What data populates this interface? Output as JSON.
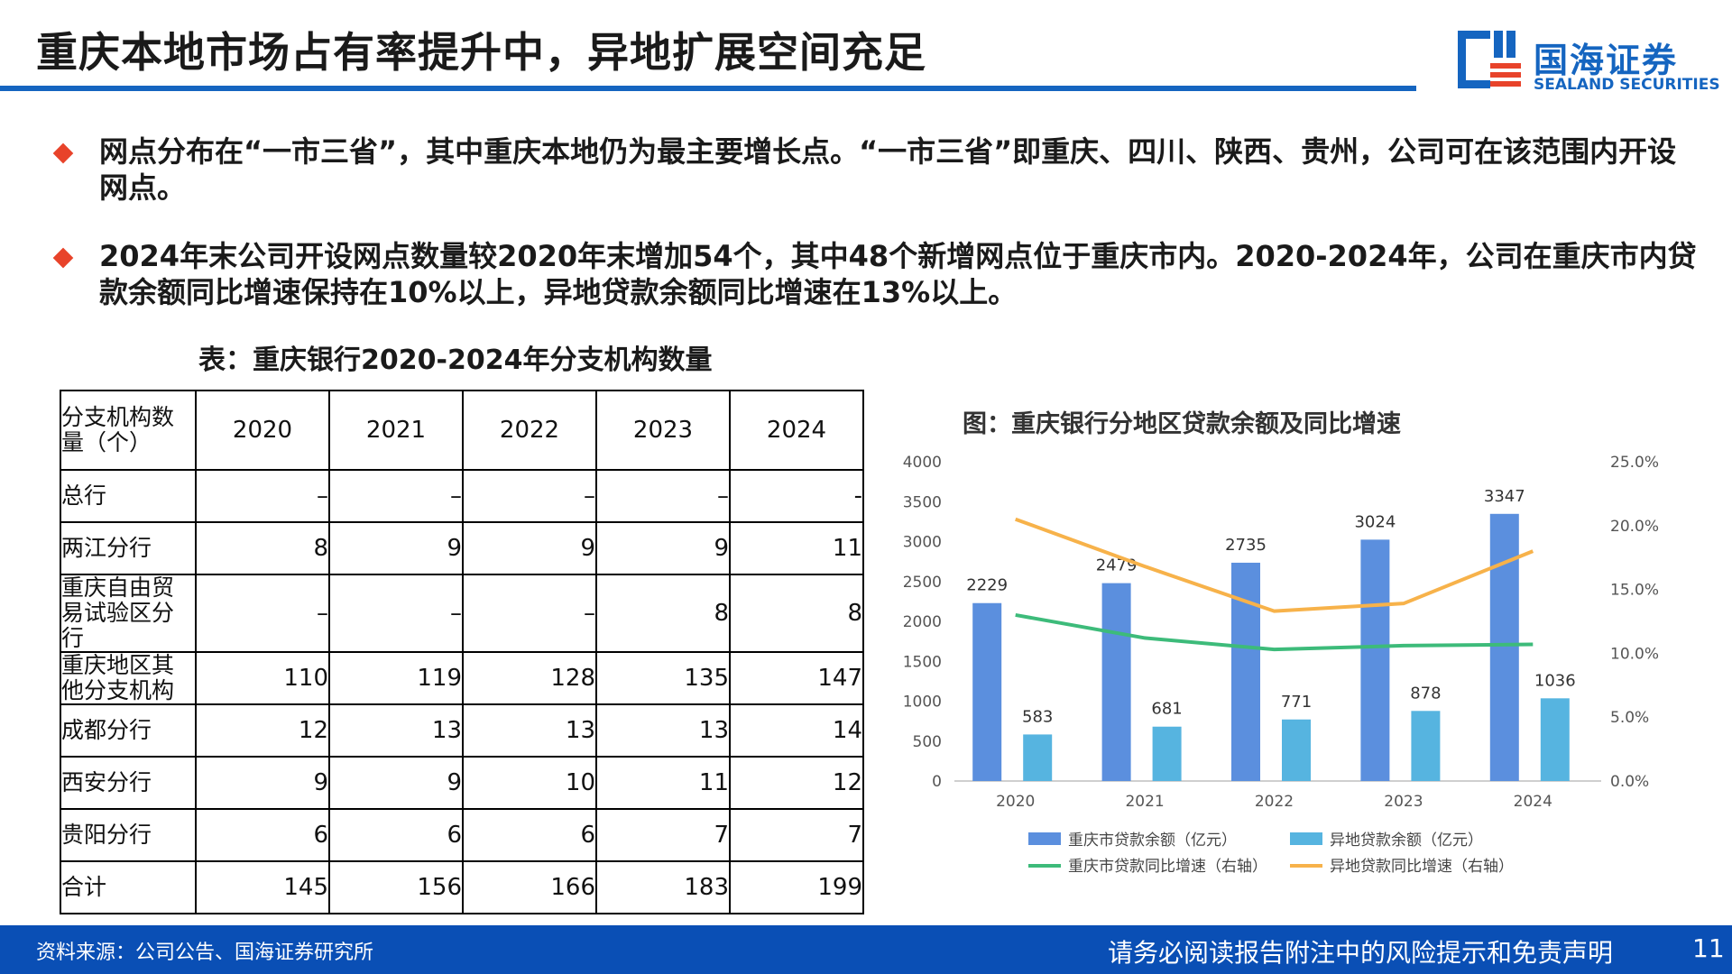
{
  "header": {
    "title": "重庆本地市场占有率提升中，异地扩展空间充足",
    "logo_cn": "国海证券",
    "logo_en": "SEALAND SECURITIES",
    "accent_color": "#1565c0"
  },
  "bullets": [
    "网点分布在“一市三省”，其中重庆本地仍为最主要增长点。“一市三省”即重庆、四川、陕西、贵州，公司可在该范围内开设网点。",
    "2024年末公司开设网点数量较2020年末增加54个，其中48个新增网点位于重庆市内。2020-2024年，公司在重庆市内贷款余额同比增速保持在10%以上，异地贷款余额同比增速在13%以上。"
  ],
  "table": {
    "title": "表：重庆银行2020-2024年分支机构数量",
    "header_label": "分支机构数量（个）",
    "years": [
      "2020",
      "2021",
      "2022",
      "2023",
      "2024"
    ],
    "rows": [
      {
        "label": "总行",
        "values": [
          "–",
          "–",
          "–",
          "–",
          "-"
        ]
      },
      {
        "label": "两江分行",
        "values": [
          "8",
          "9",
          "9",
          "9",
          "11"
        ]
      },
      {
        "label": "重庆自由贸易试验区分行",
        "values": [
          "–",
          "–",
          "–",
          "8",
          "8"
        ]
      },
      {
        "label": "重庆地区其他分支机构",
        "values": [
          "110",
          "119",
          "128",
          "135",
          "147"
        ]
      },
      {
        "label": "成都分行",
        "values": [
          "12",
          "13",
          "13",
          "13",
          "14"
        ]
      },
      {
        "label": "西安分行",
        "values": [
          "9",
          "9",
          "10",
          "11",
          "12"
        ]
      },
      {
        "label": "贵阳分行",
        "values": [
          "6",
          "6",
          "6",
          "7",
          "7"
        ]
      },
      {
        "label": "合计",
        "values": [
          "145",
          "156",
          "166",
          "183",
          "199"
        ]
      }
    ]
  },
  "chart_data": {
    "type": "bar",
    "title": "图：重庆银行分地区贷款余额及同比增速",
    "categories": [
      "2020",
      "2021",
      "2022",
      "2023",
      "2024"
    ],
    "series": [
      {
        "name": "重庆市贷款余额（亿元）",
        "kind": "bar",
        "axis": "left",
        "color": "#5b8fde",
        "values": [
          2229,
          2479,
          2735,
          3024,
          3347
        ]
      },
      {
        "name": "异地贷款余额（亿元）",
        "kind": "bar",
        "axis": "left",
        "color": "#56b4e0",
        "values": [
          583,
          681,
          771,
          878,
          1036
        ]
      },
      {
        "name": "重庆市贷款同比增速（右轴）",
        "kind": "line",
        "axis": "right",
        "color": "#3dbb7a",
        "values": [
          13.0,
          11.2,
          10.3,
          10.6,
          10.7
        ]
      },
      {
        "name": "异地贷款同比增速（右轴）",
        "kind": "line",
        "axis": "right",
        "color": "#f7b24a",
        "values": [
          20.5,
          16.8,
          13.3,
          13.9,
          18.0
        ]
      }
    ],
    "y_left": {
      "min": 0,
      "max": 4000,
      "ticks": [
        "0",
        "500",
        "1000",
        "1500",
        "2000",
        "2500",
        "3000",
        "3500",
        "4000"
      ]
    },
    "y_right": {
      "min": 0,
      "max": 25,
      "ticks": [
        "0.0%",
        "5.0%",
        "10.0%",
        "15.0%",
        "20.0%",
        "25.0%"
      ]
    },
    "legend": "bottom"
  },
  "footer": {
    "source": "资料来源：公司公告、国海证券研究所",
    "disclaimer": "请务必阅读报告附注中的风险提示和免责声明",
    "page": "11"
  }
}
